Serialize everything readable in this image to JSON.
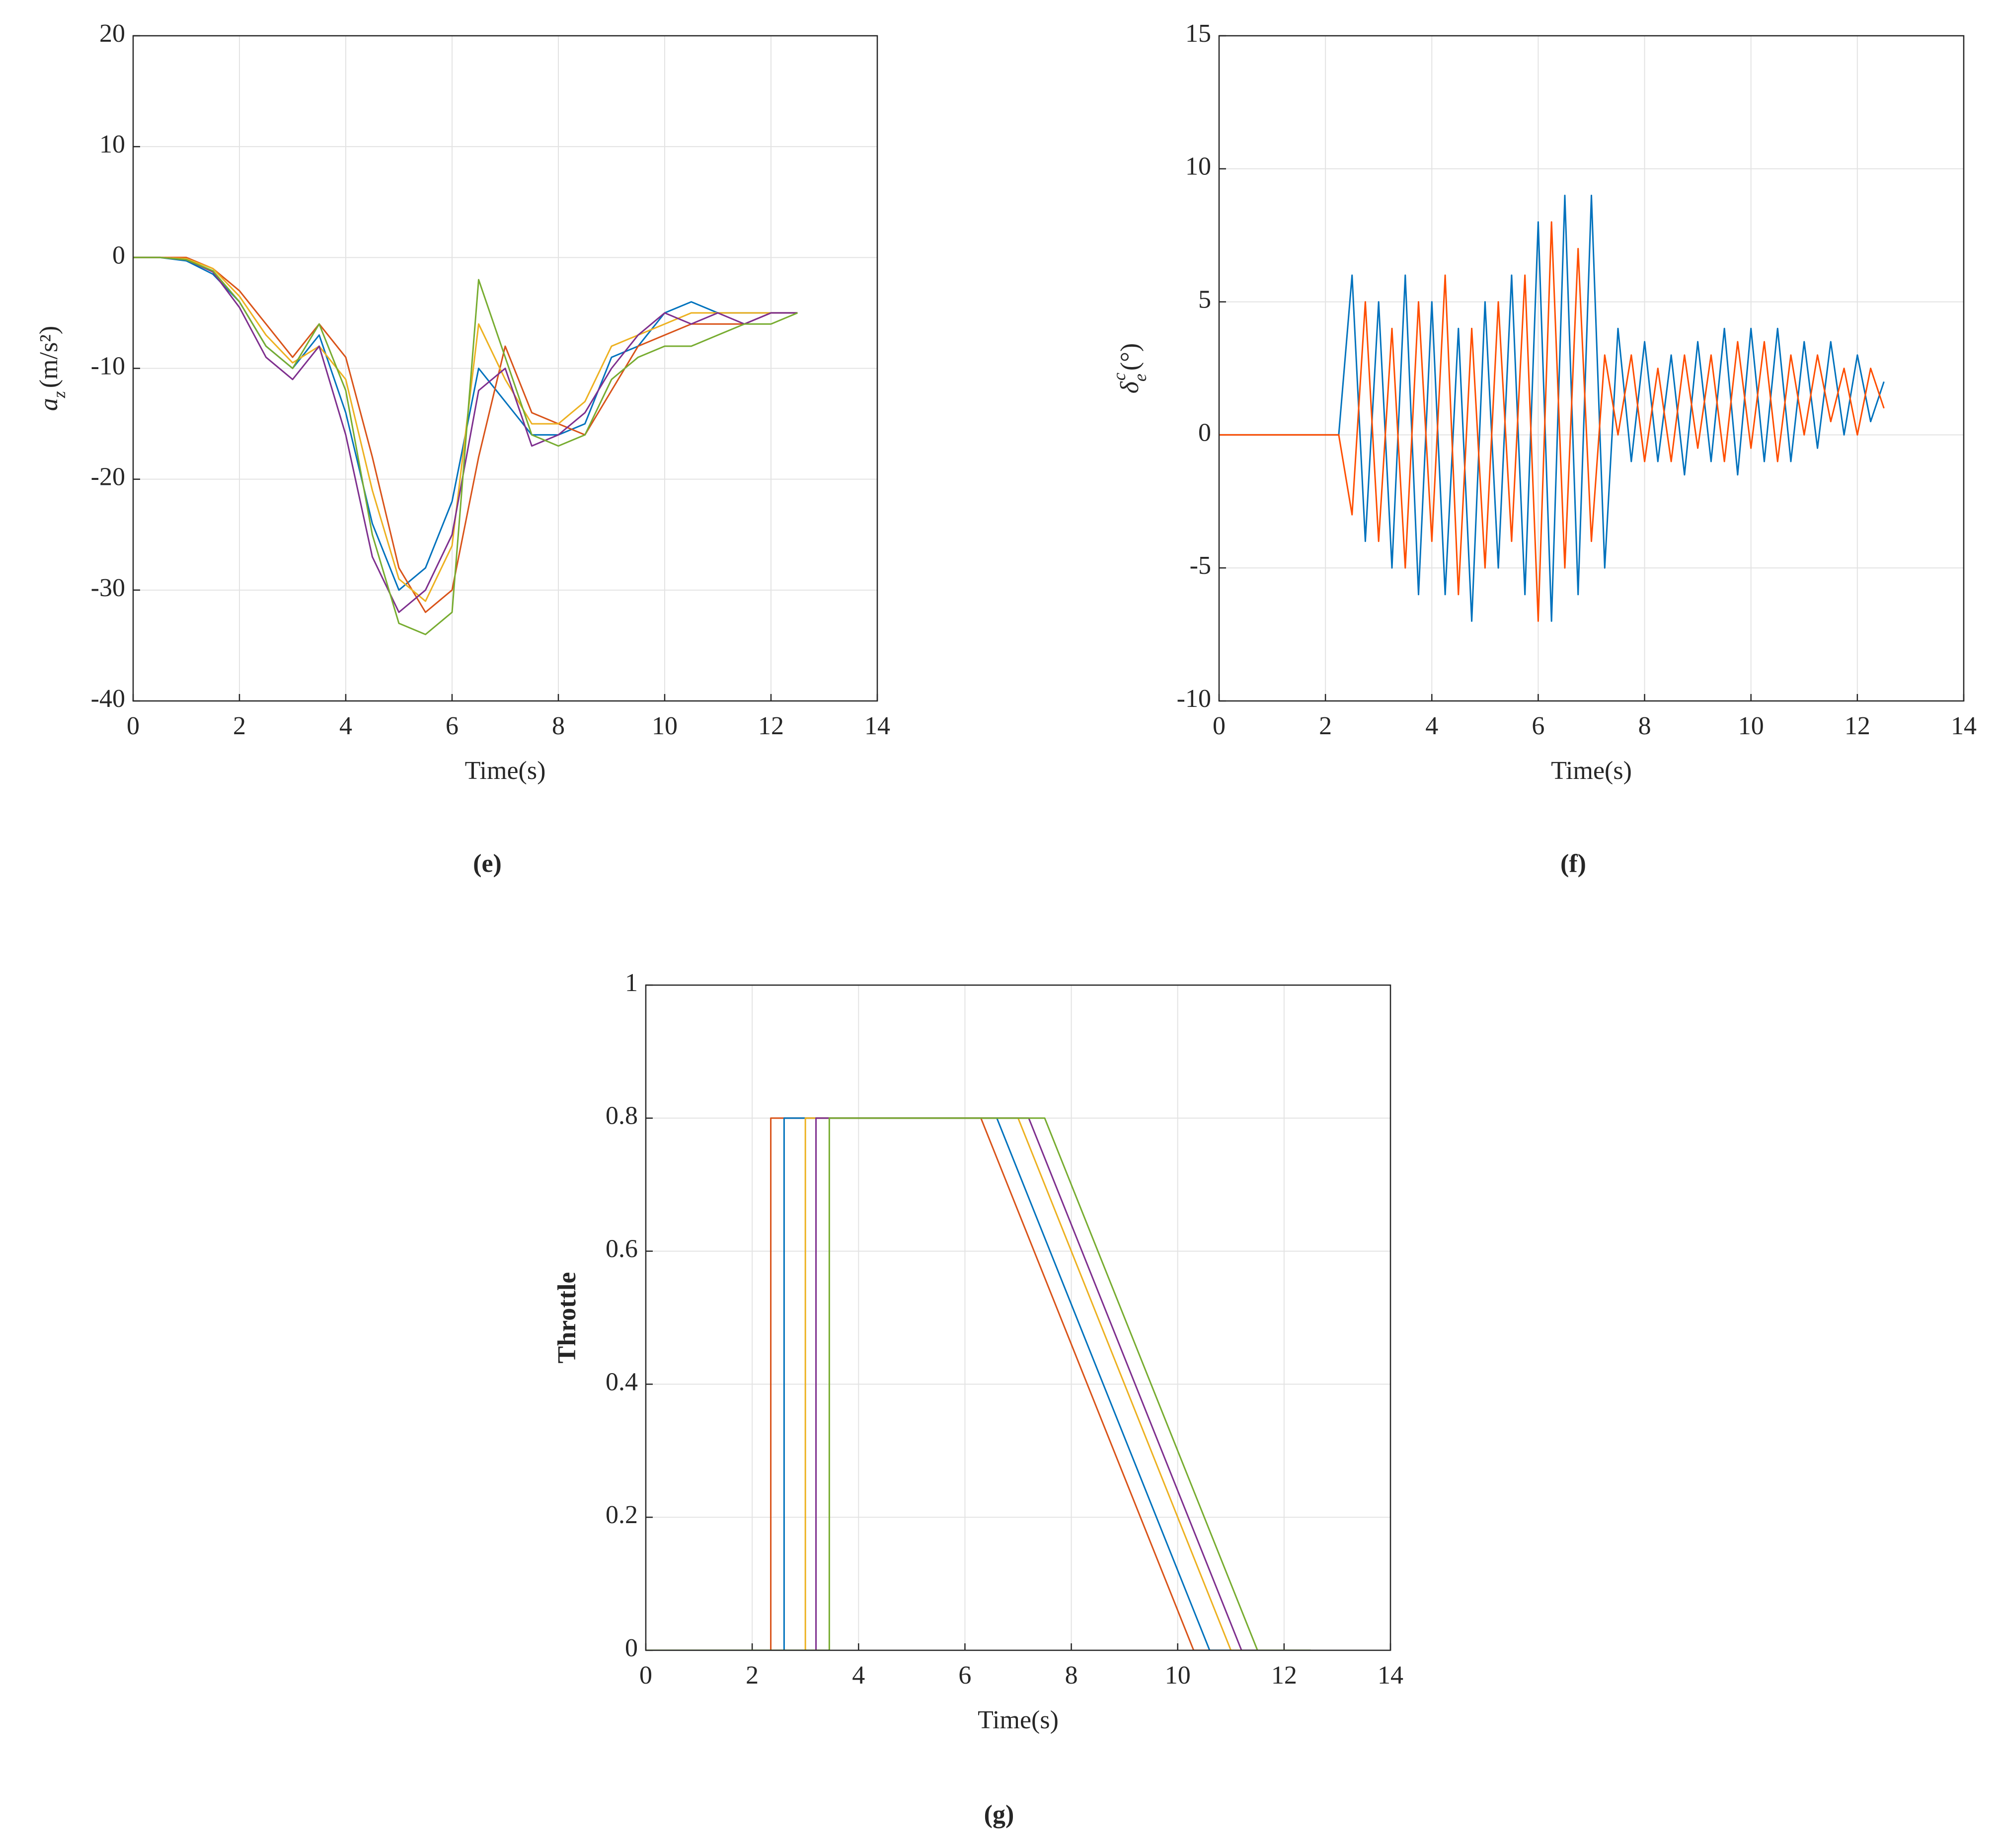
{
  "chart_data": [
    {
      "type": "line",
      "panel": "(e)",
      "xlabel": "Time(s)",
      "ylabel": {
        "base": "a",
        "sub": "z",
        "rest": "(m/s²)"
      },
      "xlim": [
        0,
        14
      ],
      "xticks": [
        0,
        2,
        4,
        6,
        8,
        10,
        12,
        14
      ],
      "ylim": [
        -40,
        20
      ],
      "yticks": [
        -40,
        -30,
        -20,
        -10,
        0,
        10,
        20
      ],
      "grid": true,
      "x": [
        0,
        0.5,
        1,
        1.5,
        2,
        2.5,
        3,
        3.5,
        4,
        4.5,
        5,
        5.5,
        6,
        6.5,
        7,
        7.5,
        8,
        8.5,
        9,
        9.5,
        10,
        10.5,
        11,
        11.5,
        12,
        12.5
      ],
      "series": [
        {
          "color": "#0072bd",
          "values": [
            0,
            0,
            -0.3,
            -1.5,
            -4,
            -8,
            -10,
            -7,
            -14,
            -24,
            -30,
            -28,
            -22,
            -10,
            -13,
            -16,
            -16,
            -15,
            -9,
            -8,
            -5,
            -4,
            -5,
            -5,
            -5,
            -5
          ]
        },
        {
          "color": "#d95319",
          "values": [
            0,
            0,
            0,
            -1,
            -3,
            -6,
            -9,
            -6,
            -9,
            -18,
            -28,
            -32,
            -30,
            -18,
            -8,
            -14,
            -15,
            -16,
            -12,
            -8,
            -7,
            -6,
            -6,
            -6,
            -5,
            -5
          ]
        },
        {
          "color": "#edb120",
          "values": [
            0,
            0,
            -0.1,
            -1,
            -3.5,
            -7,
            -9.5,
            -8,
            -11,
            -21,
            -29,
            -31,
            -26,
            -6,
            -11,
            -15,
            -15,
            -13,
            -8,
            -7,
            -6,
            -5,
            -5,
            -5,
            -5,
            -5
          ]
        },
        {
          "color": "#7e2f8e",
          "values": [
            0,
            0,
            -0.2,
            -1.3,
            -4.5,
            -9,
            -11,
            -8,
            -16,
            -27,
            -32,
            -30,
            -25,
            -12,
            -10,
            -17,
            -16,
            -14,
            -10,
            -7,
            -5,
            -6,
            -5,
            -6,
            -5,
            -5
          ]
        },
        {
          "color": "#77ac30",
          "values": [
            0,
            0,
            -0.2,
            -1.2,
            -4,
            -8,
            -10,
            -6,
            -12,
            -25,
            -33,
            -34,
            -32,
            -2,
            -9,
            -16,
            -17,
            -16,
            -11,
            -9,
            -8,
            -8,
            -7,
            -6,
            -6,
            -5
          ]
        }
      ]
    },
    {
      "type": "line",
      "panel": "(f)",
      "xlabel": "Time(s)",
      "ylabel": {
        "base": "δ",
        "sub": "e",
        "sup": "c",
        "rest": "(°)"
      },
      "xlim": [
        0,
        14
      ],
      "xticks": [
        0,
        2,
        4,
        6,
        8,
        10,
        12,
        14
      ],
      "ylim": [
        -10,
        15
      ],
      "yticks": [
        -10,
        -5,
        0,
        5,
        10,
        15
      ],
      "grid": true,
      "x": [
        0,
        0.25,
        0.5,
        0.75,
        1,
        1.25,
        1.5,
        1.75,
        2,
        2.25,
        2.5,
        2.75,
        3,
        3.25,
        3.5,
        3.75,
        4,
        4.25,
        4.5,
        4.75,
        5,
        5.25,
        5.5,
        5.75,
        6,
        6.25,
        6.5,
        6.75,
        7,
        7.25,
        7.5,
        7.75,
        8,
        8.25,
        8.5,
        8.75,
        9,
        9.25,
        9.5,
        9.75,
        10,
        10.25,
        10.5,
        10.75,
        11,
        11.25,
        11.5,
        11.75,
        12,
        12.25,
        12.5
      ],
      "series": [
        {
          "color": "#0072bd",
          "values": [
            0,
            0,
            0,
            0,
            0,
            0,
            0,
            0,
            0,
            0,
            6,
            -4,
            5,
            -5,
            6,
            -6,
            5,
            -6,
            4,
            -7,
            5,
            -5,
            6,
            -6,
            8,
            -7,
            9,
            -6,
            9,
            -5,
            4,
            -1,
            3.5,
            -1,
            3,
            -1.5,
            3.5,
            -1,
            4,
            -1.5,
            4,
            -1,
            4,
            -1,
            3.5,
            -0.5,
            3.5,
            0,
            3,
            0.5,
            2
          ]
        },
        {
          "color": "#ff4e00",
          "values": [
            0,
            0,
            0,
            0,
            0,
            0,
            0,
            0,
            0,
            0,
            -3,
            5,
            -4,
            4,
            -5,
            5,
            -4,
            6,
            -6,
            4,
            -5,
            5,
            -4,
            6,
            -7,
            8,
            -5,
            7,
            -4,
            3,
            0,
            3,
            -1,
            2.5,
            -1,
            3,
            -0.5,
            3,
            -1,
            3.5,
            -0.5,
            3.5,
            -1,
            3,
            0,
            3,
            0.5,
            2.5,
            0,
            2.5,
            1
          ]
        }
      ]
    },
    {
      "type": "line",
      "panel": "(g)",
      "xlabel": "Time(s)",
      "ylabel": {
        "base": "Throttle"
      },
      "xlim": [
        0,
        14
      ],
      "xticks": [
        0,
        2,
        4,
        6,
        8,
        10,
        12,
        14
      ],
      "ylim": [
        0,
        1
      ],
      "yticks": [
        0,
        0.2,
        0.4,
        0.6,
        0.8,
        1
      ],
      "grid": true,
      "series": [
        {
          "color": "#d95319",
          "x": [
            0,
            2.35,
            2.35,
            6.3,
            10.3,
            12.5
          ],
          "values": [
            0,
            0,
            0.8,
            0.8,
            0,
            0
          ]
        },
        {
          "color": "#0072bd",
          "x": [
            0,
            2.6,
            2.6,
            6.6,
            10.6,
            12.5
          ],
          "values": [
            0,
            0,
            0.8,
            0.8,
            0,
            0
          ]
        },
        {
          "color": "#edb120",
          "x": [
            0,
            3.0,
            3.0,
            7.0,
            11.0,
            12.5
          ],
          "values": [
            0,
            0,
            0.8,
            0.8,
            0,
            0
          ]
        },
        {
          "color": "#7e2f8e",
          "x": [
            0,
            3.2,
            3.2,
            7.2,
            11.2,
            12.5
          ],
          "values": [
            0,
            0,
            0.8,
            0.8,
            0,
            0
          ]
        },
        {
          "color": "#77ac30",
          "x": [
            0,
            3.45,
            3.45,
            7.5,
            11.5,
            12.5
          ],
          "values": [
            0,
            0,
            0.8,
            0.8,
            0,
            0
          ]
        }
      ]
    }
  ]
}
